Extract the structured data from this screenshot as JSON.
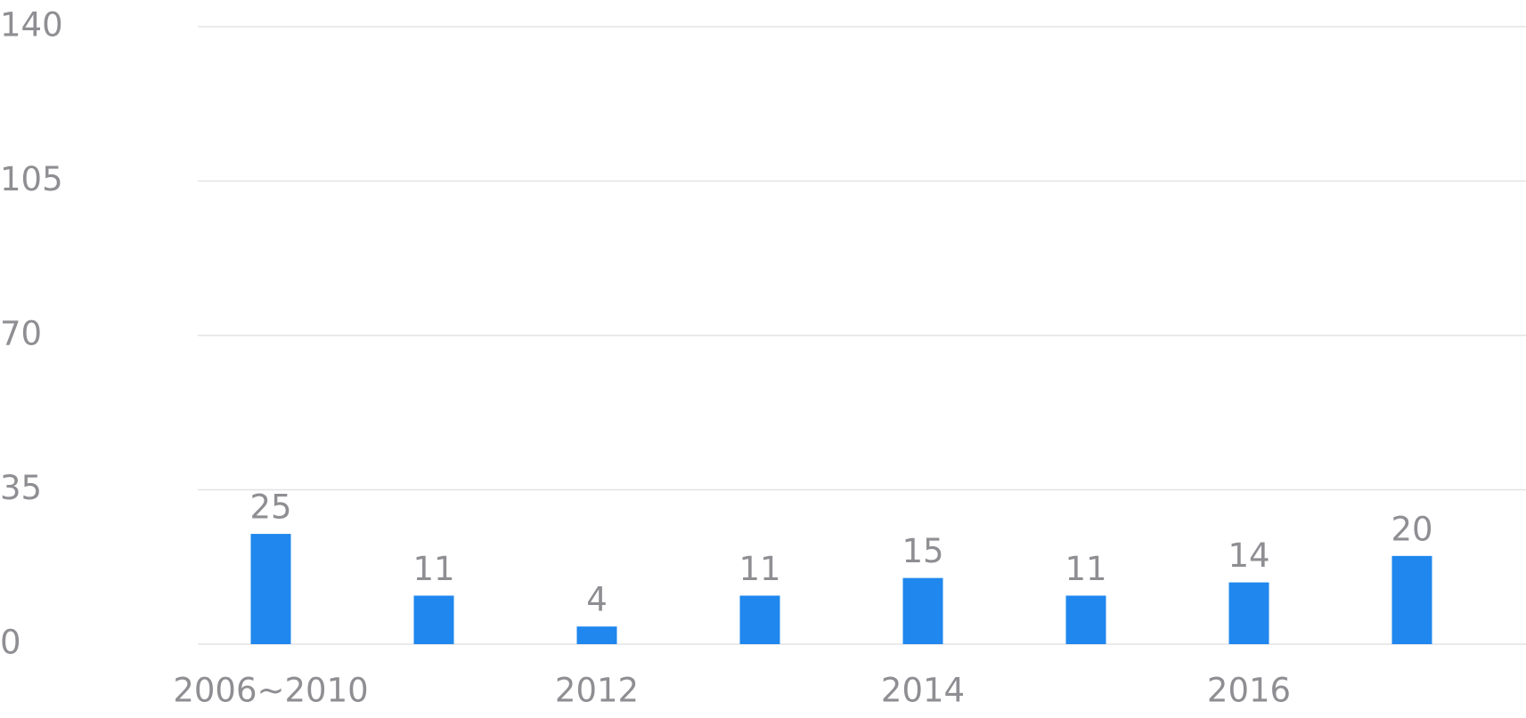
{
  "chart_data": {
    "type": "bar",
    "categories": [
      "2006~2010",
      null,
      "2012",
      null,
      "2014",
      null,
      "2016",
      null
    ],
    "values": [
      25,
      11,
      4,
      11,
      15,
      11,
      14,
      20
    ],
    "color": "#1f87ed",
    "ylim": [
      0,
      140
    ],
    "yticks": [
      0,
      35,
      70,
      105,
      140
    ],
    "grid": true
  }
}
